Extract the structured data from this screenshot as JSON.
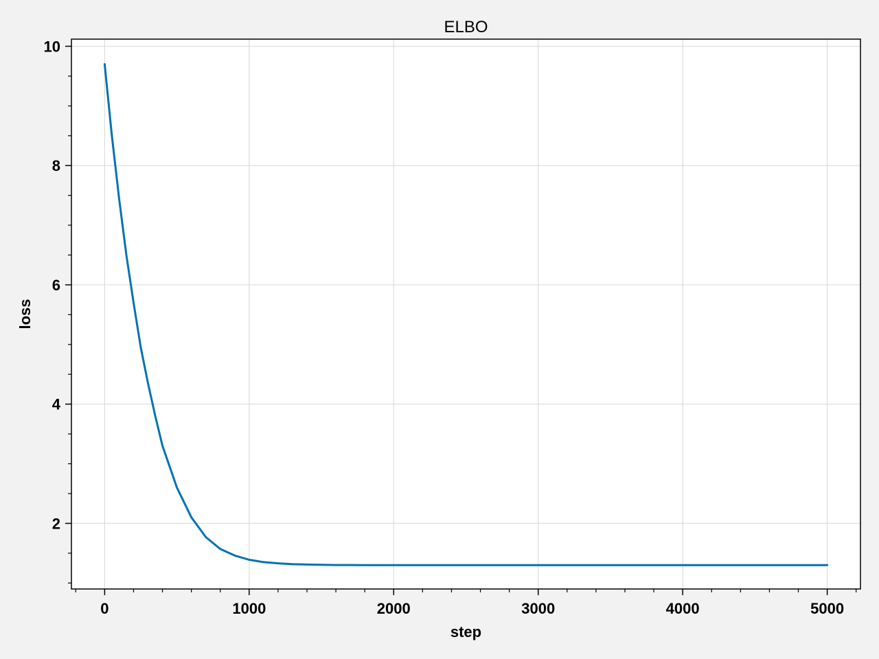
{
  "chart_data": {
    "type": "line",
    "title": "ELBO",
    "xlabel": "step",
    "ylabel": "loss",
    "xlim": [
      -230,
      5230
    ],
    "ylim": [
      0.9,
      10.12
    ],
    "x_ticks": [
      0,
      1000,
      2000,
      3000,
      4000,
      5000
    ],
    "x_tick_labels": [
      "0",
      "1000",
      "2000",
      "3000",
      "4000",
      "5000"
    ],
    "x_minor_step": 200,
    "y_ticks": [
      2,
      4,
      6,
      8,
      10
    ],
    "y_tick_labels": [
      "2",
      "4",
      "6",
      "8",
      "10"
    ],
    "y_minor_step": 0.5,
    "grid": true,
    "series": [
      {
        "color": "#0072b2",
        "x": [
          0,
          50,
          100,
          150,
          200,
          250,
          300,
          350,
          400,
          450,
          500,
          600,
          700,
          800,
          900,
          1000,
          1100,
          1200,
          1300,
          1400,
          1500,
          1600,
          1800,
          2000,
          2500,
          3000,
          3500,
          4000,
          4500,
          5000
        ],
        "y": [
          9.7,
          8.5,
          7.45,
          6.5,
          5.7,
          4.95,
          4.35,
          3.8,
          3.3,
          2.95,
          2.6,
          2.1,
          1.77,
          1.57,
          1.46,
          1.39,
          1.35,
          1.33,
          1.315,
          1.31,
          1.305,
          1.302,
          1.3,
          1.3,
          1.3,
          1.3,
          1.3,
          1.3,
          1.3,
          1.3
        ]
      }
    ]
  }
}
